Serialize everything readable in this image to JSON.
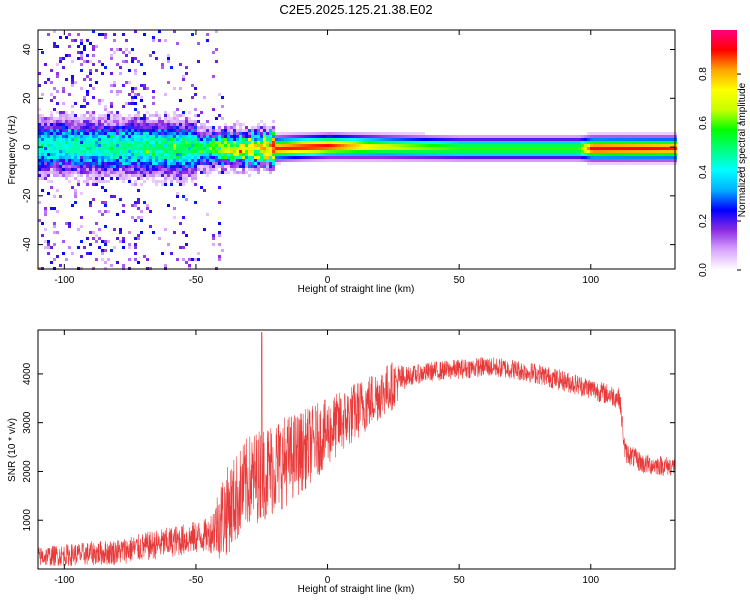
{
  "title": "C2E5.2025.125.21.38.E02",
  "colors": {
    "frame": "#000000",
    "snr_line": "#e83a3a",
    "background": "#ffffff"
  },
  "chart_data": [
    {
      "type": "heatmap",
      "title": "C2E5.2025.125.21.38.E02",
      "xlabel": "Height of straight line (km)",
      "ylabel": "Frequency (Hz)",
      "xlim": [
        -110,
        132
      ],
      "ylim": [
        -50,
        48
      ],
      "xticks": [
        -100,
        -50,
        0,
        50,
        100
      ],
      "yticks": [
        -40,
        -20,
        0,
        20,
        40
      ],
      "colorbar": {
        "label": "Normalized spectral amplitude",
        "range": [
          0,
          0.98
        ],
        "ticks": [
          "0.0",
          "0.2",
          "0.4",
          "0.6",
          "0.8"
        ],
        "colormap": [
          "#ffffff",
          "#d9a6ff",
          "#8a2be2",
          "#0000ff",
          "#00b0ff",
          "#00ffff",
          "#00ff7f",
          "#00ff00",
          "#c8ff00",
          "#ffff00",
          "#ffa500",
          "#ff0000",
          "#ff0080"
        ]
      },
      "band": {
        "description_free_values": true,
        "center_frequency": [
          {
            "x": -110,
            "y": 1
          },
          {
            "x": -60,
            "y": 0
          },
          {
            "x": -20,
            "y": 0
          },
          {
            "x": 0,
            "y": 1
          },
          {
            "x": 50,
            "y": 0
          },
          {
            "x": 100,
            "y": 0
          },
          {
            "x": 132,
            "y": 0
          }
        ],
        "peak_amplitude": [
          {
            "x": -110,
            "y": 0.45
          },
          {
            "x": -50,
            "y": 0.55
          },
          {
            "x": -20,
            "y": 0.9
          },
          {
            "x": 0,
            "y": 0.92
          },
          {
            "x": 20,
            "y": 0.7
          },
          {
            "x": 50,
            "y": 0.6
          },
          {
            "x": 95,
            "y": 0.6
          },
          {
            "x": 100,
            "y": 0.95
          },
          {
            "x": 132,
            "y": 0.9
          }
        ]
      }
    },
    {
      "type": "line",
      "xlabel": "Height of straight line (km)",
      "ylabel": "SNR (10 * v/v)",
      "xlim": [
        -110,
        132
      ],
      "ylim": [
        0,
        4900
      ],
      "xticks": [
        -100,
        -50,
        0,
        50,
        100
      ],
      "yticks": [
        1000,
        2000,
        3000,
        4000
      ],
      "series": [
        {
          "color": "#e83a3a",
          "envelope": [
            {
              "x": -110,
              "y": 250
            },
            {
              "x": -80,
              "y": 350
            },
            {
              "x": -60,
              "y": 550
            },
            {
              "x": -45,
              "y": 700
            },
            {
              "x": -38,
              "y": 1200
            },
            {
              "x": -30,
              "y": 1800
            },
            {
              "x": -20,
              "y": 2100
            },
            {
              "x": -10,
              "y": 2400
            },
            {
              "x": 0,
              "y": 2800
            },
            {
              "x": 10,
              "y": 3200
            },
            {
              "x": 20,
              "y": 3600
            },
            {
              "x": 30,
              "y": 3950
            },
            {
              "x": 40,
              "y": 4050
            },
            {
              "x": 50,
              "y": 4100
            },
            {
              "x": 60,
              "y": 4150
            },
            {
              "x": 70,
              "y": 4100
            },
            {
              "x": 80,
              "y": 4000
            },
            {
              "x": 90,
              "y": 3850
            },
            {
              "x": 100,
              "y": 3700
            },
            {
              "x": 111,
              "y": 3500
            },
            {
              "x": 113,
              "y": 2400
            },
            {
              "x": 120,
              "y": 2150
            },
            {
              "x": 132,
              "y": 2100
            }
          ],
          "noise_amplitude": [
            {
              "x": -110,
              "y": 200
            },
            {
              "x": -45,
              "y": 350
            },
            {
              "x": -40,
              "y": 900
            },
            {
              "x": -20,
              "y": 1000
            },
            {
              "x": 0,
              "y": 700
            },
            {
              "x": 25,
              "y": 500
            },
            {
              "x": 30,
              "y": 200
            },
            {
              "x": 110,
              "y": 220
            },
            {
              "x": 132,
              "y": 200
            }
          ],
          "spike": {
            "x": -25,
            "y": 4850
          }
        }
      ]
    }
  ]
}
